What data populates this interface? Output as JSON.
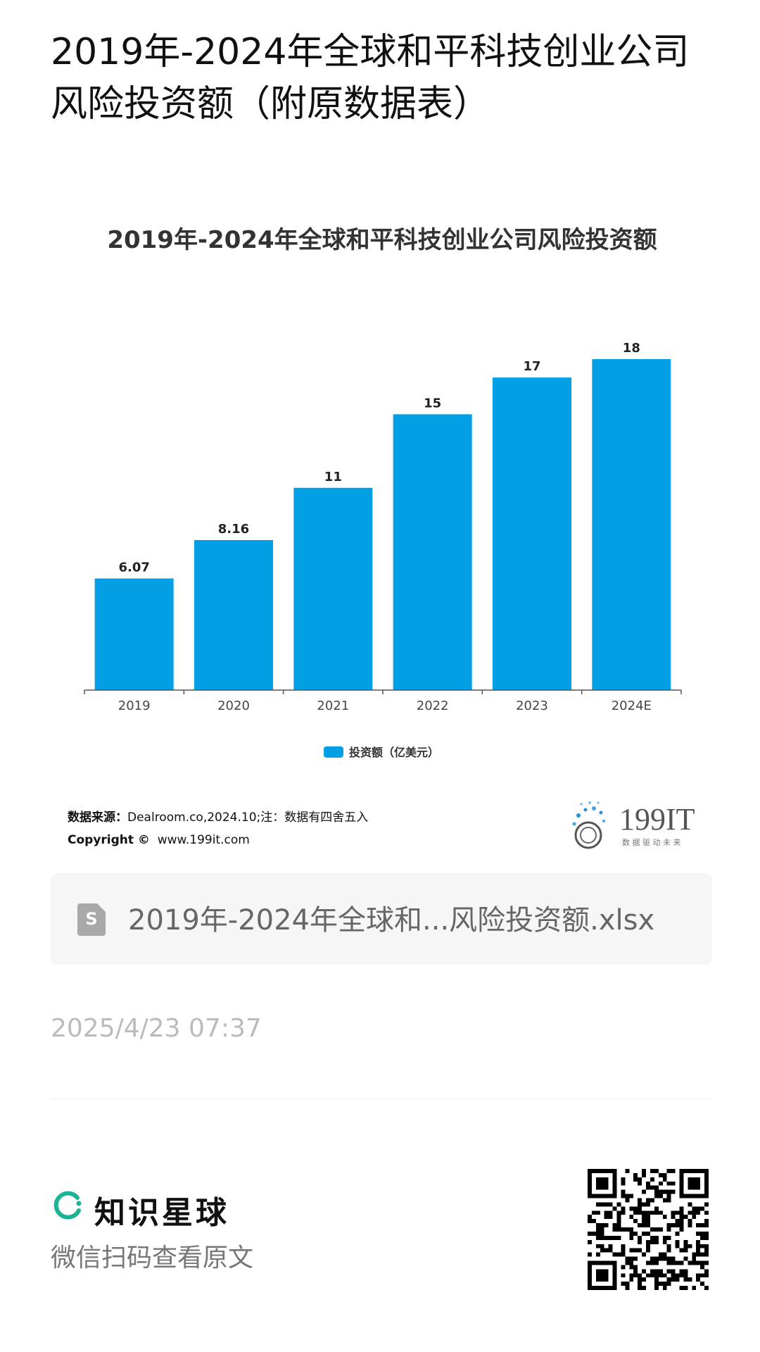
{
  "header": {
    "title": "2019年-2024年全球和平科技创业公司风险投资额（附原数据表）"
  },
  "chart_data": {
    "type": "bar",
    "title": "2019年-2024年全球和平科技创业公司风险投资额",
    "categories": [
      "2019",
      "2020",
      "2021",
      "2022",
      "2023",
      "2024E"
    ],
    "series": [
      {
        "name": "投资额（亿美元）",
        "values": [
          6.07,
          8.16,
          11,
          15,
          17,
          18
        ],
        "color": "#039fe5"
      }
    ],
    "value_labels": [
      "6.07",
      "8.16",
      "11",
      "15",
      "17",
      "18"
    ],
    "xlabel": "",
    "ylabel": "",
    "ylim": [
      0,
      18
    ],
    "grid": false,
    "legend_position": "bottom-center"
  },
  "source": {
    "label": "数据来源：",
    "text": "Dealroom.co,2024.10;注：数据有四舍五入",
    "copyright_label": "Copyright ©",
    "copyright_text": "www.199it.com"
  },
  "logo": {
    "name": "199IT",
    "tagline": "数 据 驱 动 未 来",
    "icon": "dandelion-logo-icon"
  },
  "attachment": {
    "icon": "spreadsheet-file-icon",
    "icon_glyph": "S",
    "file_name": "2019年-2024年全球和...风险投资额.xlsx"
  },
  "meta": {
    "timestamp": "2025/4/23 07:37"
  },
  "footer": {
    "brand_icon": "zsxq-ring-icon",
    "brand_name": "知识星球",
    "scan_hint": "微信扫码查看原文",
    "qr_icon": "qr-code-icon",
    "brand_color": "#1bb394"
  }
}
